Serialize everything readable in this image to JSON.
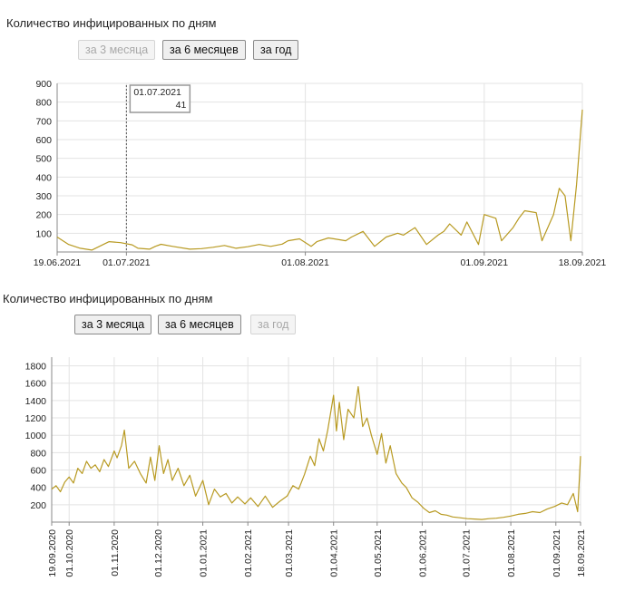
{
  "panel1": {
    "title": "Количество инфицированных по дням",
    "buttons": [
      {
        "label": "за 3 месяца",
        "enabled": false
      },
      {
        "label": "за 6 месяцев",
        "enabled": true
      },
      {
        "label": "за год",
        "enabled": true
      }
    ]
  },
  "panel2": {
    "title": "Количество инфицированных по дням",
    "buttons": [
      {
        "label": "за 3 месяца",
        "enabled": true
      },
      {
        "label": "за 6 месяцев",
        "enabled": true
      },
      {
        "label": "за год",
        "enabled": false
      }
    ]
  },
  "colors": {
    "line": "#b89a22",
    "grid": "#e3e3e3",
    "axis": "#888888"
  },
  "chart_data": [
    {
      "type": "line",
      "title": "Количество инфицированных по дням",
      "xlabel": "",
      "ylabel": "",
      "x_range": [
        "19.06.2021",
        "18.09.2021"
      ],
      "ylim": [
        0,
        900
      ],
      "yticks": [
        100,
        200,
        300,
        400,
        500,
        600,
        700,
        800,
        900
      ],
      "xticks": [
        "19.06.2021",
        "01.07.2021",
        "01.08.2021",
        "01.09.2021",
        "18.09.2021"
      ],
      "grid": true,
      "tooltip": {
        "date": "01.07.2021",
        "value": "41"
      },
      "series": [
        {
          "points": [
            [
              "2021-06-19",
              80
            ],
            [
              "2021-06-21",
              40
            ],
            [
              "2021-06-23",
              20
            ],
            [
              "2021-06-25",
              10
            ],
            [
              "2021-06-27",
              40
            ],
            [
              "2021-06-28",
              55
            ],
            [
              "2021-06-30",
              50
            ],
            [
              "2021-07-02",
              38
            ],
            [
              "2021-07-03",
              20
            ],
            [
              "2021-07-05",
              15
            ],
            [
              "2021-07-06",
              30
            ],
            [
              "2021-07-07",
              41
            ],
            [
              "2021-07-09",
              30
            ],
            [
              "2021-07-12",
              15
            ],
            [
              "2021-07-14",
              18
            ],
            [
              "2021-07-16",
              25
            ],
            [
              "2021-07-18",
              35
            ],
            [
              "2021-07-20",
              20
            ],
            [
              "2021-07-22",
              28
            ],
            [
              "2021-07-24",
              40
            ],
            [
              "2021-07-26",
              30
            ],
            [
              "2021-07-28",
              42
            ],
            [
              "2021-07-29",
              60
            ],
            [
              "2021-07-31",
              70
            ],
            [
              "2021-08-02",
              30
            ],
            [
              "2021-08-03",
              55
            ],
            [
              "2021-08-05",
              75
            ],
            [
              "2021-08-06",
              70
            ],
            [
              "2021-08-08",
              60
            ],
            [
              "2021-08-09",
              80
            ],
            [
              "2021-08-11",
              110
            ],
            [
              "2021-08-13",
              30
            ],
            [
              "2021-08-15",
              80
            ],
            [
              "2021-08-17",
              100
            ],
            [
              "2021-08-18",
              90
            ],
            [
              "2021-08-20",
              130
            ],
            [
              "2021-08-22",
              40
            ],
            [
              "2021-08-24",
              90
            ],
            [
              "2021-08-25",
              110
            ],
            [
              "2021-08-26",
              150
            ],
            [
              "2021-08-28",
              90
            ],
            [
              "2021-08-29",
              160
            ],
            [
              "2021-08-31",
              40
            ],
            [
              "2021-09-01",
              200
            ],
            [
              "2021-09-03",
              180
            ],
            [
              "2021-09-04",
              60
            ],
            [
              "2021-09-06",
              130
            ],
            [
              "2021-09-07",
              180
            ],
            [
              "2021-09-08",
              220
            ],
            [
              "2021-09-10",
              210
            ],
            [
              "2021-09-11",
              60
            ],
            [
              "2021-09-13",
              200
            ],
            [
              "2021-09-14",
              340
            ],
            [
              "2021-09-15",
              300
            ],
            [
              "2021-09-16",
              60
            ],
            [
              "2021-09-17",
              360
            ],
            [
              "2021-09-18",
              760
            ]
          ]
        }
      ]
    },
    {
      "type": "line",
      "title": "Количество инфицированных по дням",
      "xlabel": "",
      "ylabel": "",
      "x_range": [
        "19.09.2020",
        "18.09.2021"
      ],
      "ylim": [
        0,
        1900
      ],
      "yticks": [
        200,
        400,
        600,
        800,
        1000,
        1200,
        1400,
        1600,
        1800
      ],
      "xticks": [
        "19.09.2020",
        "01.10.2020",
        "01.11.2020",
        "01.12.2020",
        "01.01.2021",
        "01.02.2021",
        "01.03.2021",
        "01.04.2021",
        "01.05.2021",
        "01.06.2021",
        "01.07.2021",
        "01.08.2021",
        "01.09.2021",
        "18.09.2021"
      ],
      "grid": true,
      "series": [
        {
          "points": [
            [
              "2020-09-19",
              380
            ],
            [
              "2020-09-22",
              420
            ],
            [
              "2020-09-25",
              350
            ],
            [
              "2020-09-28",
              460
            ],
            [
              "2020-10-01",
              520
            ],
            [
              "2020-10-04",
              450
            ],
            [
              "2020-10-07",
              620
            ],
            [
              "2020-10-10",
              560
            ],
            [
              "2020-10-13",
              700
            ],
            [
              "2020-10-16",
              620
            ],
            [
              "2020-10-19",
              660
            ],
            [
              "2020-10-22",
              580
            ],
            [
              "2020-10-25",
              720
            ],
            [
              "2020-10-28",
              640
            ],
            [
              "2020-11-01",
              820
            ],
            [
              "2020-11-03",
              740
            ],
            [
              "2020-11-06",
              880
            ],
            [
              "2020-11-08",
              1060
            ],
            [
              "2020-11-11",
              620
            ],
            [
              "2020-11-15",
              700
            ],
            [
              "2020-11-19",
              560
            ],
            [
              "2020-11-23",
              450
            ],
            [
              "2020-11-26",
              750
            ],
            [
              "2020-11-29",
              480
            ],
            [
              "2020-12-02",
              880
            ],
            [
              "2020-12-05",
              560
            ],
            [
              "2020-12-08",
              720
            ],
            [
              "2020-12-11",
              480
            ],
            [
              "2020-12-15",
              620
            ],
            [
              "2020-12-19",
              420
            ],
            [
              "2020-12-23",
              540
            ],
            [
              "2020-12-27",
              300
            ],
            [
              "2021-01-01",
              480
            ],
            [
              "2021-01-05",
              200
            ],
            [
              "2021-01-09",
              380
            ],
            [
              "2021-01-13",
              290
            ],
            [
              "2021-01-17",
              330
            ],
            [
              "2021-01-21",
              220
            ],
            [
              "2021-01-25",
              290
            ],
            [
              "2021-01-30",
              210
            ],
            [
              "2021-02-03",
              280
            ],
            [
              "2021-02-08",
              180
            ],
            [
              "2021-02-13",
              300
            ],
            [
              "2021-02-18",
              170
            ],
            [
              "2021-02-23",
              240
            ],
            [
              "2021-02-28",
              300
            ],
            [
              "2021-03-04",
              420
            ],
            [
              "2021-03-08",
              380
            ],
            [
              "2021-03-12",
              550
            ],
            [
              "2021-03-16",
              760
            ],
            [
              "2021-03-19",
              650
            ],
            [
              "2021-03-22",
              960
            ],
            [
              "2021-03-25",
              820
            ],
            [
              "2021-03-28",
              1060
            ],
            [
              "2021-04-01",
              1460
            ],
            [
              "2021-04-03",
              1050
            ],
            [
              "2021-04-05",
              1380
            ],
            [
              "2021-04-08",
              950
            ],
            [
              "2021-04-11",
              1300
            ],
            [
              "2021-04-15",
              1200
            ],
            [
              "2021-04-18",
              1560
            ],
            [
              "2021-04-21",
              1100
            ],
            [
              "2021-04-24",
              1200
            ],
            [
              "2021-04-27",
              1000
            ],
            [
              "2021-05-01",
              780
            ],
            [
              "2021-05-04",
              1020
            ],
            [
              "2021-05-07",
              680
            ],
            [
              "2021-05-10",
              880
            ],
            [
              "2021-05-14",
              560
            ],
            [
              "2021-05-18",
              450
            ],
            [
              "2021-05-21",
              400
            ],
            [
              "2021-05-25",
              280
            ],
            [
              "2021-05-29",
              230
            ],
            [
              "2021-06-02",
              160
            ],
            [
              "2021-06-06",
              110
            ],
            [
              "2021-06-10",
              130
            ],
            [
              "2021-06-14",
              90
            ],
            [
              "2021-06-18",
              80
            ],
            [
              "2021-06-22",
              60
            ],
            [
              "2021-06-27",
              50
            ],
            [
              "2021-07-02",
              40
            ],
            [
              "2021-07-07",
              35
            ],
            [
              "2021-07-12",
              30
            ],
            [
              "2021-07-17",
              40
            ],
            [
              "2021-07-22",
              45
            ],
            [
              "2021-07-27",
              55
            ],
            [
              "2021-08-01",
              70
            ],
            [
              "2021-08-06",
              90
            ],
            [
              "2021-08-11",
              100
            ],
            [
              "2021-08-16",
              120
            ],
            [
              "2021-08-21",
              110
            ],
            [
              "2021-08-26",
              150
            ],
            [
              "2021-08-31",
              180
            ],
            [
              "2021-09-05",
              220
            ],
            [
              "2021-09-09",
              200
            ],
            [
              "2021-09-13",
              330
            ],
            [
              "2021-09-16",
              120
            ],
            [
              "2021-09-18",
              760
            ]
          ]
        }
      ]
    }
  ]
}
